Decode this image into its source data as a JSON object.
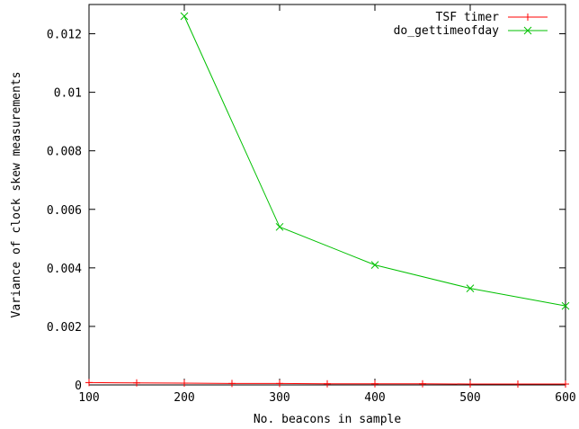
{
  "chart_data": {
    "type": "line",
    "xlabel": "No. beacons in sample",
    "ylabel": "Variance of clock skew measurements",
    "xlim": [
      100,
      600
    ],
    "ylim": [
      0,
      0.013
    ],
    "x_ticks": [
      100,
      200,
      300,
      400,
      500,
      600
    ],
    "y_ticks": [
      {
        "value": 0,
        "label": "0"
      },
      {
        "value": 0.002,
        "label": "0.002"
      },
      {
        "value": 0.004,
        "label": "0.004"
      },
      {
        "value": 0.006,
        "label": "0.006"
      },
      {
        "value": 0.008,
        "label": "0.008"
      },
      {
        "value": 0.01,
        "label": "0.01"
      },
      {
        "value": 0.012,
        "label": "0.012"
      }
    ],
    "grid": false,
    "legend_position": "top-right",
    "series": [
      {
        "name": "TSF timer",
        "color": "#ff0000",
        "marker": "plus",
        "x": [
          100,
          150,
          200,
          250,
          300,
          350,
          400,
          450,
          500,
          550,
          600
        ],
        "y": [
          8e-05,
          7e-05,
          6e-05,
          5e-05,
          5e-05,
          4e-05,
          4e-05,
          4e-05,
          3e-05,
          3e-05,
          3e-05
        ]
      },
      {
        "name": "do_gettimeofday",
        "color": "#00c000",
        "marker": "cross",
        "x": [
          200,
          300,
          400,
          500,
          600
        ],
        "y": [
          0.0126,
          0.0054,
          0.0041,
          0.0033,
          0.0027
        ]
      }
    ]
  }
}
